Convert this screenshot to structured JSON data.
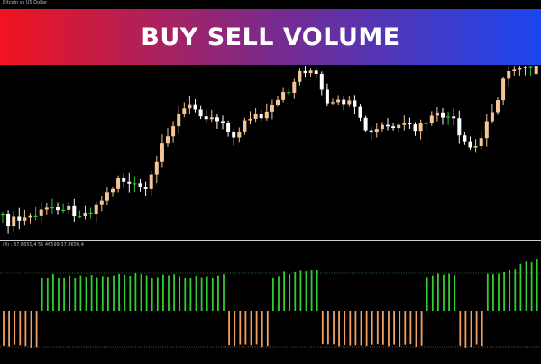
{
  "banner": {
    "title": "BUY SELL VOLUME",
    "gradient_left": "#f0141e",
    "gradient_mid": "#7a2a8c",
    "gradient_right": "#1a46f0"
  },
  "symbol_label": "Bitcoin vs US Dollar",
  "indicator_label": "(4) : 37.8650,4 55 46599 37.8650,4",
  "colors": {
    "background": "#000000",
    "bull_candle": "#f5c596",
    "bear_candle": "#ffffff",
    "doji_candle": "#35c235",
    "buy_volume": "#33cc33",
    "sell_volume": "#f0a060",
    "divider": "#cfcfcf"
  },
  "chart_data": {
    "type": "candlestick",
    "panels": [
      "price",
      "buy-sell-volume"
    ],
    "candles_visible": 98,
    "price_panel": {
      "grid": false,
      "ylim": [
        0,
        100
      ]
    },
    "volume_panel": {
      "grid": false,
      "ylim": [
        -10,
        10
      ]
    }
  }
}
